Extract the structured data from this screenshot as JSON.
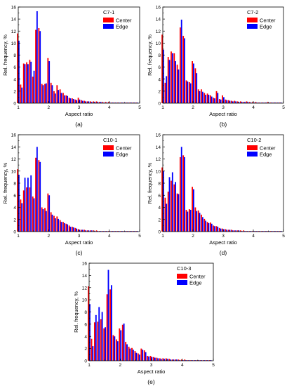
{
  "colors": {
    "center": "#ff0000",
    "edge": "#0000ff",
    "axis": "#000000"
  },
  "chart_data": [
    {
      "type": "bar",
      "panel": "(a)",
      "title": "C7-1",
      "xlabel": "Aspect ratio",
      "ylabel": "Rel. frequency, %",
      "xlim": [
        1,
        5
      ],
      "ylim": [
        0,
        16
      ],
      "xticks": [
        1,
        2,
        3,
        4,
        5
      ],
      "yticks": [
        0,
        2,
        4,
        6,
        8,
        10,
        12,
        14,
        16
      ],
      "legend_position": "top-right",
      "bin_width": 0.1,
      "x": [
        1.0,
        1.1,
        1.2,
        1.3,
        1.4,
        1.5,
        1.6,
        1.7,
        1.8,
        1.9,
        2.0,
        2.1,
        2.2,
        2.3,
        2.4,
        2.5,
        2.6,
        2.7,
        2.8,
        2.9,
        3.0,
        3.1,
        3.2,
        3.3,
        3.4,
        3.5,
        3.6,
        3.7,
        3.8,
        3.9,
        4.0,
        4.1,
        4.2,
        4.3,
        4.4,
        4.5,
        4.6,
        4.7,
        4.8,
        4.9
      ],
      "series": [
        {
          "name": "Center",
          "values": [
            11.6,
            3.1,
            6.6,
            6.8,
            7.2,
            4.4,
            12.2,
            12.5,
            3.2,
            3.2,
            7.5,
            3.4,
            2.0,
            3.0,
            2.3,
            1.7,
            1.3,
            0.9,
            0.8,
            0.6,
            0.9,
            0.5,
            0.4,
            0.3,
            0.3,
            0.3,
            0.3,
            0.2,
            0.2,
            0.2,
            0.2,
            0.1,
            0.1,
            0.1,
            0.1,
            0.1,
            0.1,
            0.1,
            0.1,
            0.1
          ]
        },
        {
          "name": "Edge",
          "values": [
            10.4,
            2.6,
            6.5,
            6.5,
            6.9,
            5.4,
            15.3,
            12.0,
            3.0,
            3.3,
            7.0,
            3.0,
            1.6,
            2.2,
            1.7,
            1.3,
            1.2,
            0.8,
            0.7,
            0.5,
            0.6,
            0.4,
            0.3,
            0.3,
            0.2,
            0.2,
            0.2,
            0.2,
            0.1,
            0.1,
            0.1,
            0.1,
            0.1,
            0.1,
            0.1,
            0.1,
            0.1,
            0.1,
            0.1,
            0.1
          ]
        }
      ]
    },
    {
      "type": "bar",
      "panel": "(b)",
      "title": "C7-2",
      "xlabel": "Aspect ratio",
      "ylabel": "Rel. frequency, %",
      "xlim": [
        1,
        5
      ],
      "ylim": [
        0,
        16
      ],
      "xticks": [
        1,
        2,
        3,
        4,
        5
      ],
      "yticks": [
        0,
        2,
        4,
        6,
        8,
        10,
        12,
        14,
        16
      ],
      "legend_position": "top-right",
      "bin_width": 0.1,
      "x": [
        1.0,
        1.1,
        1.2,
        1.3,
        1.4,
        1.5,
        1.6,
        1.7,
        1.8,
        1.9,
        2.0,
        2.1,
        2.2,
        2.3,
        2.4,
        2.5,
        2.6,
        2.7,
        2.8,
        2.9,
        3.0,
        3.1,
        3.2,
        3.3,
        3.4,
        3.5,
        3.6,
        3.7,
        3.8,
        3.9,
        4.0,
        4.1,
        4.2,
        4.3,
        4.4,
        4.5,
        4.6,
        4.7,
        4.8,
        4.9
      ],
      "series": [
        {
          "name": "Center",
          "values": [
            11.4,
            3.4,
            7.7,
            8.6,
            8.3,
            6.4,
            12.6,
            11.2,
            3.8,
            3.5,
            7.0,
            5.8,
            2.3,
            2.3,
            1.7,
            1.6,
            1.3,
            0.9,
            2.0,
            0.7,
            1.3,
            0.6,
            0.5,
            0.4,
            0.4,
            0.3,
            0.3,
            0.2,
            0.3,
            0.2,
            0.2,
            0.2,
            0.1,
            0.1,
            0.1,
            0.2,
            0.1,
            0.1,
            0.1,
            0.1
          ]
        },
        {
          "name": "Edge",
          "values": [
            8.9,
            4.5,
            7.2,
            8.3,
            7.0,
            5.6,
            13.9,
            10.8,
            3.6,
            3.3,
            6.6,
            5.0,
            2.0,
            1.9,
            1.4,
            1.4,
            1.1,
            0.8,
            1.7,
            0.6,
            1.0,
            0.5,
            0.4,
            0.3,
            0.3,
            0.2,
            0.2,
            0.2,
            0.2,
            0.1,
            0.1,
            0.1,
            0.1,
            0.1,
            0.1,
            0.1,
            0.1,
            0.1,
            0.1,
            0.1
          ]
        }
      ]
    },
    {
      "type": "bar",
      "panel": "(c)",
      "title": "C10-1",
      "xlabel": "Aspect ratio",
      "ylabel": "Rel. frequency, %",
      "xlim": [
        1,
        5
      ],
      "ylim": [
        0,
        16
      ],
      "xticks": [
        1,
        2,
        3,
        4,
        5
      ],
      "yticks": [
        0,
        2,
        4,
        6,
        8,
        10,
        12,
        14,
        16
      ],
      "legend_position": "top-right",
      "bin_width": 0.1,
      "x": [
        1.0,
        1.1,
        1.2,
        1.3,
        1.4,
        1.5,
        1.6,
        1.7,
        1.8,
        1.9,
        2.0,
        2.1,
        2.2,
        2.3,
        2.4,
        2.5,
        2.6,
        2.7,
        2.8,
        2.9,
        3.0,
        3.1,
        3.2,
        3.3,
        3.4,
        3.5,
        3.6,
        3.7,
        3.8,
        3.9,
        4.0,
        4.1,
        4.2,
        4.3,
        4.4,
        4.5,
        4.6,
        4.7,
        4.8,
        4.9
      ],
      "series": [
        {
          "name": "Center",
          "values": [
            10.3,
            5.3,
            6.8,
            7.3,
            7.3,
            5.8,
            12.2,
            11.8,
            4.0,
            3.9,
            6.3,
            3.2,
            2.6,
            2.5,
            1.9,
            1.6,
            1.3,
            1.0,
            0.8,
            0.6,
            0.4,
            0.3,
            0.3,
            0.2,
            0.2,
            0.2,
            0.2,
            0.1,
            0.1,
            0.1,
            0.1,
            0.1,
            0.1,
            0.1,
            0.1,
            0.1,
            0.1,
            0.1,
            0.1,
            0.1
          ]
        },
        {
          "name": "Edge",
          "values": [
            9.4,
            4.7,
            8.9,
            8.9,
            9.3,
            5.5,
            14.0,
            11.5,
            3.7,
            3.4,
            6.0,
            2.8,
            2.2,
            2.1,
            1.6,
            1.4,
            1.2,
            0.8,
            0.7,
            0.5,
            0.3,
            0.3,
            0.2,
            0.2,
            0.2,
            0.1,
            0.1,
            0.1,
            0.1,
            0.1,
            0.1,
            0.1,
            0.1,
            0.1,
            0.1,
            0.1,
            0.1,
            0.1,
            0.1,
            0.1
          ]
        }
      ]
    },
    {
      "type": "bar",
      "panel": "(d)",
      "title": "C10-2",
      "xlabel": "Aspect ratio",
      "ylabel": "Rel. frequency, %",
      "xlim": [
        1,
        5
      ],
      "ylim": [
        0,
        16
      ],
      "xticks": [
        1,
        2,
        3,
        4,
        5
      ],
      "yticks": [
        0,
        2,
        4,
        6,
        8,
        10,
        12,
        14,
        16
      ],
      "legend_position": "top-right",
      "bin_width": 0.1,
      "x": [
        1.0,
        1.1,
        1.2,
        1.3,
        1.4,
        1.5,
        1.6,
        1.7,
        1.8,
        1.9,
        2.0,
        2.1,
        2.2,
        2.3,
        2.4,
        2.5,
        2.6,
        2.7,
        2.8,
        2.9,
        3.0,
        3.1,
        3.2,
        3.3,
        3.4,
        3.5,
        3.6,
        3.7,
        3.8,
        3.9,
        4.0,
        4.1,
        4.2,
        4.3,
        4.4,
        4.5,
        4.6,
        4.7,
        4.8,
        4.9
      ],
      "series": [
        {
          "name": "Center",
          "values": [
            10.6,
            5.6,
            6.6,
            8.4,
            7.8,
            6.3,
            12.3,
            12.6,
            3.6,
            3.7,
            7.4,
            4.0,
            3.5,
            2.8,
            2.1,
            1.6,
            1.5,
            1.0,
            0.9,
            0.6,
            0.5,
            0.4,
            0.3,
            0.3,
            0.2,
            0.2,
            0.2,
            0.2,
            0.1,
            0.1,
            0.1,
            0.1,
            0.1,
            0.1,
            0.1,
            0.1,
            0.1,
            0.1,
            0.1,
            0.1
          ]
        },
        {
          "name": "Edge",
          "values": [
            10.0,
            4.6,
            9.0,
            9.8,
            8.2,
            6.2,
            14.0,
            12.3,
            3.3,
            3.6,
            7.0,
            3.4,
            3.1,
            2.4,
            1.8,
            1.4,
            1.3,
            0.9,
            0.8,
            0.5,
            0.4,
            0.3,
            0.3,
            0.2,
            0.2,
            0.2,
            0.1,
            0.1,
            0.1,
            0.1,
            0.1,
            0.1,
            0.1,
            0.1,
            0.1,
            0.1,
            0.1,
            0.1,
            0.1,
            0.1
          ]
        }
      ]
    },
    {
      "type": "bar",
      "panel": "(e)",
      "title": "C10-3",
      "xlabel": "Aspect ratio",
      "ylabel": "Rel. frequency, %",
      "xlim": [
        1,
        5
      ],
      "ylim": [
        0,
        16
      ],
      "xticks": [
        1,
        2,
        3,
        4,
        5
      ],
      "yticks": [
        0,
        2,
        4,
        6,
        8,
        10,
        12,
        14,
        16
      ],
      "legend_position": "top-right",
      "bin_width": 0.1,
      "x": [
        1.0,
        1.1,
        1.2,
        1.3,
        1.4,
        1.5,
        1.6,
        1.7,
        1.8,
        1.9,
        2.0,
        2.1,
        2.2,
        2.3,
        2.4,
        2.5,
        2.6,
        2.7,
        2.8,
        2.9,
        3.0,
        3.1,
        3.2,
        3.3,
        3.4,
        3.5,
        3.6,
        3.7,
        3.8,
        3.9,
        4.0,
        4.1,
        4.2,
        4.3,
        4.4,
        4.5,
        4.6,
        4.7,
        4.8,
        4.9
      ],
      "series": [
        {
          "name": "Center",
          "values": [
            12.2,
            3.6,
            6.3,
            6.4,
            6.8,
            5.3,
            10.9,
            11.7,
            4.2,
            3.5,
            5.3,
            5.9,
            3.1,
            2.3,
            2.1,
            1.6,
            1.2,
            2.0,
            1.7,
            0.8,
            0.8,
            0.6,
            0.5,
            0.4,
            0.4,
            0.4,
            0.3,
            0.2,
            0.2,
            0.2,
            0.2,
            0.2,
            0.1,
            0.1,
            0.1,
            0.1,
            0.1,
            0.1,
            0.1,
            0.1
          ]
        },
        {
          "name": "Edge",
          "values": [
            9.3,
            2.4,
            7.5,
            8.8,
            8.0,
            5.5,
            14.9,
            12.4,
            4.0,
            3.2,
            5.0,
            6.1,
            2.7,
            2.0,
            1.8,
            1.3,
            1.0,
            1.8,
            1.4,
            0.7,
            0.6,
            0.5,
            0.4,
            0.3,
            0.3,
            0.3,
            0.2,
            0.2,
            0.2,
            0.1,
            0.1,
            0.1,
            0.1,
            0.1,
            0.1,
            0.1,
            0.1,
            0.1,
            0.1,
            0.1
          ]
        }
      ]
    }
  ]
}
